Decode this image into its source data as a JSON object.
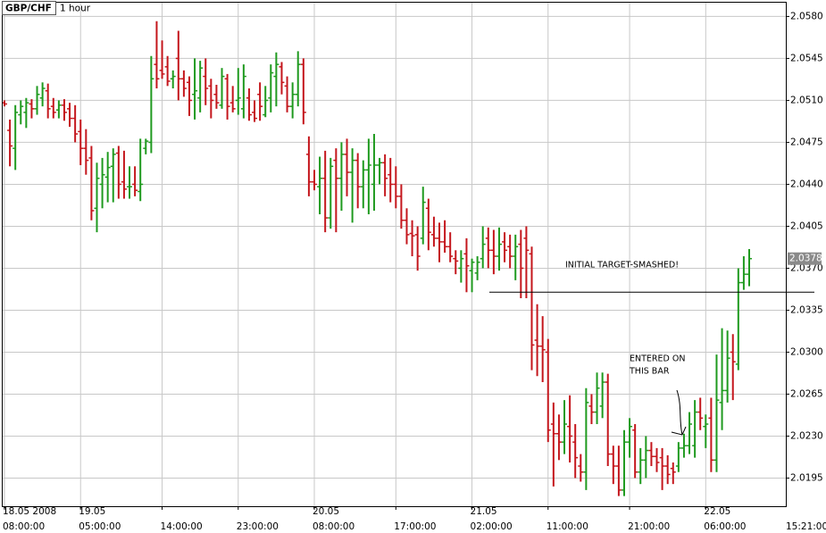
{
  "chart_data": {
    "type": "ohlc",
    "title": "GBP/CHF",
    "timeframe": "1 hour",
    "categories": [
      "08:00:00",
      null,
      null,
      null,
      null,
      null,
      null,
      null,
      null,
      null,
      null,
      null,
      null,
      null,
      "05:00:00",
      null,
      null,
      null,
      null,
      null,
      null,
      null,
      null,
      null,
      null,
      null,
      null,
      null,
      null,
      "14:00:00",
      null,
      null,
      null,
      null,
      null,
      null,
      null,
      null,
      null,
      null,
      null,
      null,
      null,
      "23:00:00",
      null,
      null,
      null,
      null,
      null,
      null,
      null,
      null,
      null,
      null,
      null,
      null,
      null,
      "08:00:00",
      null,
      null,
      null,
      null,
      null,
      null,
      null,
      null,
      null,
      null,
      null,
      null,
      null,
      null,
      "17:00:00",
      null,
      null,
      null,
      null,
      null,
      null,
      null,
      null,
      null,
      null,
      null,
      null,
      null,
      "02:00:00",
      null,
      null,
      null,
      null,
      null,
      null,
      null,
      null,
      null,
      null,
      null,
      null,
      null,
      "11:00:00",
      null,
      null,
      null,
      null,
      null,
      null,
      null,
      null,
      null,
      null,
      null,
      null,
      null,
      null,
      "21:00:00",
      null,
      null,
      null,
      null,
      null,
      null,
      null,
      null,
      null,
      null,
      null,
      null,
      null,
      "06:00:00",
      null,
      null,
      null,
      null,
      null,
      null,
      null,
      null
    ],
    "dates": [
      "18.05 2008",
      null,
      null,
      null,
      null,
      null,
      null,
      null,
      null,
      null,
      null,
      null,
      null,
      null,
      "19.05",
      null,
      null,
      null,
      null,
      null,
      null,
      null,
      null,
      null,
      null,
      null,
      null,
      null,
      null,
      null,
      null,
      null,
      null,
      null,
      null,
      null,
      null,
      null,
      null,
      null,
      null,
      null,
      null,
      null,
      null,
      null,
      null,
      null,
      null,
      null,
      null,
      null,
      null,
      null,
      null,
      null,
      null,
      "20.05",
      null,
      null,
      null,
      null,
      null,
      null,
      null,
      null,
      null,
      null,
      null,
      null,
      null,
      null,
      null,
      null,
      null,
      null,
      null,
      null,
      null,
      null,
      null,
      null,
      null,
      null,
      null,
      null,
      "21.05",
      null,
      null,
      null,
      null,
      null,
      null,
      null,
      null,
      null,
      null,
      null,
      null,
      null,
      null,
      null,
      null,
      null,
      null,
      null,
      null,
      null,
      null,
      null,
      null,
      null,
      null,
      null,
      null,
      null,
      null,
      null,
      null,
      null,
      null,
      null,
      null,
      null,
      null,
      null,
      null,
      null,
      null,
      "22.05",
      null,
      null,
      null,
      null,
      null,
      null,
      null,
      null
    ],
    "open": [
      2.0508,
      2.0485,
      2.047,
      2.0498,
      2.05,
      2.0507,
      2.0503,
      2.0512,
      2.0518,
      2.0505,
      2.0502,
      2.0506,
      2.0503,
      2.0495,
      2.0484,
      2.047,
      2.0462,
      2.042,
      2.044,
      2.0446,
      2.0455,
      2.0466,
      2.0442,
      2.0438,
      2.044,
      2.0434,
      2.047,
      2.0475,
      2.054,
      2.0535,
      2.0538,
      2.0528,
      2.0545,
      2.0528,
      2.0525,
      2.0515,
      2.0512,
      2.053,
      2.0522,
      2.0515,
      2.0506,
      2.0528,
      2.0508,
      2.051,
      2.0503,
      2.0512,
      2.05,
      2.0515,
      2.0498,
      2.0512,
      2.053,
      2.0538,
      2.0522,
      2.0505,
      2.0515,
      2.054,
      2.0465,
      2.0442,
      2.0438,
      2.0445,
      2.0412,
      2.046,
      2.0445,
      2.0465,
      2.045,
      2.046,
      2.0438,
      2.0452,
      2.044,
      2.0456,
      2.0458,
      2.0448,
      2.044,
      2.043,
      2.041,
      2.0399,
      2.0398,
      2.0395,
      2.042,
      2.0398,
      2.0395,
      2.0392,
      2.0388,
      2.0378,
      2.037,
      2.0382,
      2.0368,
      2.0366,
      2.0378,
      2.0395,
      2.0385,
      2.038,
      2.0392,
      2.0388,
      2.038,
      2.039,
      2.0395,
      2.0382,
      2.031,
      2.0305,
      2.03,
      2.024,
      2.0232,
      2.0225,
      2.0238,
      2.0225,
      2.0205,
      2.02,
      2.0255,
      2.025,
      2.0255,
      2.0275,
      2.0215,
      2.0205,
      2.0185,
      2.0225,
      2.0235,
      2.02,
      2.021,
      2.0218,
      2.0213,
      2.0212,
      2.0205,
      2.0203,
      2.0205,
      2.022,
      2.0222,
      2.0222,
      2.025,
      2.0238,
      2.0245,
      2.021,
      2.0258,
      2.0268,
      2.03,
      2.029,
      2.0358,
      2.0365
    ],
    "high": [
      2.051,
      2.0494,
      2.0506,
      2.051,
      2.0512,
      2.0511,
      2.0522,
      2.0525,
      2.0524,
      2.0512,
      2.051,
      2.0511,
      2.0508,
      2.0506,
      2.0494,
      2.0486,
      2.0472,
      2.0458,
      2.0462,
      2.0467,
      2.047,
      2.0472,
      2.0468,
      2.0455,
      2.0455,
      2.0478,
      2.0478,
      2.0547,
      2.0576,
      2.056,
      2.0547,
      2.0535,
      2.0568,
      2.0535,
      2.053,
      2.0545,
      2.0543,
      2.0545,
      2.0528,
      2.0523,
      2.0537,
      2.0532,
      2.0522,
      2.0537,
      2.054,
      2.052,
      2.051,
      2.0525,
      2.0522,
      2.054,
      2.055,
      2.0542,
      2.053,
      2.0525,
      2.0551,
      2.0545,
      2.048,
      2.0452,
      2.0463,
      2.0468,
      2.0462,
      2.047,
      2.0475,
      2.0478,
      2.047,
      2.0466,
      2.046,
      2.0478,
      2.0482,
      2.0462,
      2.0465,
      2.0462,
      2.0455,
      2.044,
      2.042,
      2.041,
      2.0405,
      2.0438,
      2.0428,
      2.0413,
      2.0408,
      2.041,
      2.04,
      2.0385,
      2.0385,
      2.0395,
      2.0378,
      2.038,
      2.0405,
      2.0404,
      2.0402,
      2.0404,
      2.04,
      2.0398,
      2.0398,
      2.0402,
      2.0405,
      2.0388,
      2.034,
      2.033,
      2.0311,
      2.0258,
      2.0248,
      2.026,
      2.0264,
      2.024,
      2.0215,
      2.027,
      2.0265,
      2.0283,
      2.0283,
      2.0282,
      2.0222,
      2.0222,
      2.0235,
      2.0245,
      2.024,
      2.022,
      2.023,
      2.0225,
      2.022,
      2.022,
      2.0214,
      2.0208,
      2.0225,
      2.0232,
      2.025,
      2.026,
      2.0262,
      2.0248,
      2.0262,
      2.0298,
      2.032,
      2.0318,
      2.0315,
      2.037,
      2.038,
      2.0386
    ],
    "low": [
      2.0505,
      2.0455,
      2.0452,
      2.049,
      2.0487,
      2.0495,
      2.0498,
      2.0505,
      2.0495,
      2.0495,
      2.0495,
      2.0493,
      2.0488,
      2.0475,
      2.0456,
      2.0448,
      2.041,
      2.04,
      2.042,
      2.0425,
      2.0425,
      2.0428,
      2.0428,
      2.0428,
      2.043,
      2.0426,
      2.0465,
      2.0466,
      2.052,
      2.0528,
      2.0522,
      2.052,
      2.051,
      2.0513,
      2.0497,
      2.0494,
      2.05,
      2.0506,
      2.0495,
      2.0503,
      2.0503,
      2.0494,
      2.05,
      2.0498,
      2.0495,
      2.0493,
      2.0492,
      2.0493,
      2.0496,
      2.05,
      2.0505,
      2.0515,
      2.05,
      2.0495,
      2.0505,
      2.049,
      2.043,
      2.0435,
      2.0415,
      2.04,
      2.0403,
      2.04,
      2.0418,
      2.043,
      2.0408,
      2.042,
      2.042,
      2.0415,
      2.0418,
      2.044,
      2.043,
      2.0425,
      2.042,
      2.0403,
      2.039,
      2.038,
      2.0368,
      2.039,
      2.0385,
      2.0388,
      2.0375,
      2.0383,
      2.0375,
      2.0365,
      2.0358,
      2.035,
      2.035,
      2.036,
      2.037,
      2.037,
      2.0365,
      2.0368,
      2.0375,
      2.037,
      2.036,
      2.0345,
      2.0345,
      2.0285,
      2.028,
      2.0275,
      2.0225,
      2.0188,
      2.021,
      2.0215,
      2.0208,
      2.0195,
      2.0192,
      2.0185,
      2.024,
      2.024,
      2.0245,
      2.0205,
      2.019,
      2.018,
      2.018,
      2.0212,
      2.0195,
      2.019,
      2.0195,
      2.0205,
      2.02,
      2.0185,
      2.019,
      2.019,
      2.02,
      2.0212,
      2.0215,
      2.0212,
      2.0235,
      2.022,
      2.02,
      2.02,
      2.0235,
      2.0258,
      2.026,
      2.0285,
      2.0352,
      2.0355
    ],
    "close": [
      2.0507,
      2.0472,
      2.05,
      2.0505,
      2.0508,
      2.0503,
      2.0515,
      2.052,
      2.0503,
      2.05,
      2.0506,
      2.05,
      2.0495,
      2.0482,
      2.047,
      2.046,
      2.0418,
      2.0445,
      2.0448,
      2.0454,
      2.0465,
      2.044,
      2.0436,
      2.0438,
      2.0435,
      2.044,
      2.0476,
      2.0528,
      2.0528,
      2.0532,
      2.0526,
      2.053,
      2.0528,
      2.052,
      2.051,
      2.0518,
      2.0537,
      2.052,
      2.051,
      2.0508,
      2.053,
      2.0505,
      2.0503,
      2.0512,
      2.053,
      2.0498,
      2.0495,
      2.0505,
      2.051,
      2.0533,
      2.054,
      2.0525,
      2.0505,
      2.0515,
      2.054,
      2.05,
      2.0442,
      2.044,
      2.0445,
      2.0412,
      2.0455,
      2.0445,
      2.0465,
      2.045,
      2.046,
      2.0438,
      2.0452,
      2.0456,
      2.0456,
      2.0458,
      2.0445,
      2.044,
      2.043,
      2.041,
      2.0398,
      2.0397,
      2.038,
      2.0425,
      2.04,
      2.0395,
      2.0392,
      2.0388,
      2.038,
      2.0376,
      2.0378,
      2.0372,
      2.0375,
      2.0375,
      2.039,
      2.0385,
      2.038,
      2.039,
      2.0385,
      2.038,
      2.0388,
      2.037,
      2.0385,
      2.0306,
      2.0305,
      2.0302,
      2.0235,
      2.0232,
      2.0225,
      2.024,
      2.023,
      2.0212,
      2.02,
      2.0258,
      2.025,
      2.027,
      2.0275,
      2.0215,
      2.0205,
      2.0185,
      2.0225,
      2.0238,
      2.02,
      2.021,
      2.0218,
      2.0213,
      2.0208,
      2.0205,
      2.0198,
      2.02,
      2.022,
      2.0222,
      2.024,
      2.025,
      2.0245,
      2.024,
      2.021,
      2.026,
      2.0268,
      2.0295,
      2.0292,
      2.0358,
      2.0365,
      2.0378
    ],
    "up_color": "#1f9a1f",
    "down_color": "#c4161c",
    "ylim": [
      2.0173,
      2.059
    ],
    "yticks": [
      {
        "value": 2.058,
        "label": "2.0580"
      },
      {
        "value": 2.0545,
        "label": "2.0545"
      },
      {
        "value": 2.051,
        "label": "2.0510"
      },
      {
        "value": 2.0475,
        "label": "2.0475"
      },
      {
        "value": 2.044,
        "label": "2.0440"
      },
      {
        "value": 2.0405,
        "label": "2.0405"
      },
      {
        "value": 2.037,
        "label": "2.0370"
      },
      {
        "value": 2.0335,
        "label": "2.0335"
      },
      {
        "value": 2.03,
        "label": "2.0300"
      },
      {
        "value": 2.0265,
        "label": "2.0265"
      },
      {
        "value": 2.023,
        "label": "2.0230"
      },
      {
        "value": 2.0195,
        "label": "2.0195"
      }
    ],
    "grid": true,
    "hline": 2.035,
    "annotations": [
      "INITIAL TARGET-SMASHED!",
      "ENTERED ON",
      "THIS BAR"
    ],
    "clock": "15:21:00"
  }
}
